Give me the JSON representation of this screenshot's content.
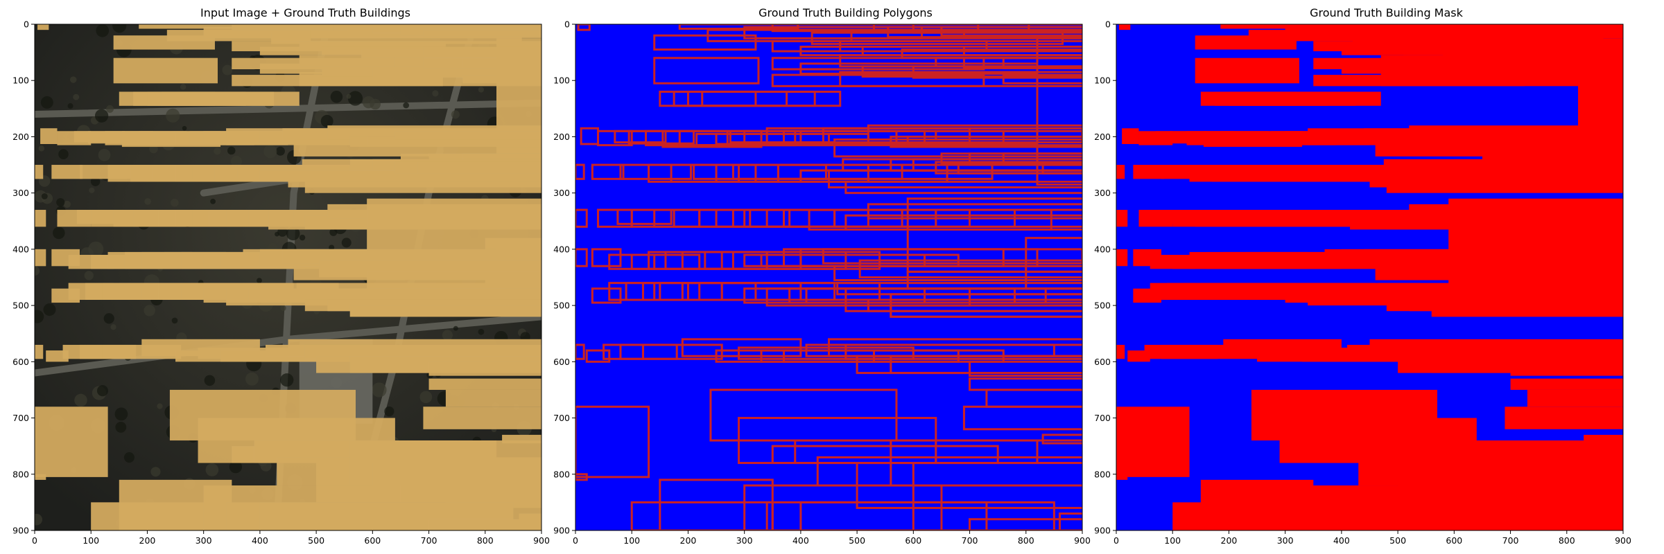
{
  "chart_data": [
    {
      "type": "image",
      "title": "Input Image + Ground Truth Buildings",
      "xlim": [
        0,
        900
      ],
      "ylim": [
        900,
        0
      ],
      "x_ticks": [
        0,
        100,
        200,
        300,
        400,
        500,
        600,
        700,
        800,
        900
      ],
      "y_ticks": [
        0,
        100,
        200,
        300,
        400,
        500,
        600,
        700,
        800,
        900
      ],
      "content": "satellite image with semi-transparent orange building overlay"
    },
    {
      "type": "image",
      "title": "Ground Truth Building Polygons",
      "xlim": [
        0,
        900
      ],
      "ylim": [
        900,
        0
      ],
      "x_ticks": [
        0,
        100,
        200,
        300,
        400,
        500,
        600,
        700,
        800,
        900
      ],
      "y_ticks": [
        0,
        100,
        200,
        300,
        400,
        500,
        600,
        700,
        800,
        900
      ],
      "background_color": "#0000ff",
      "outline_color": "#cc2222"
    },
    {
      "type": "image",
      "title": "Ground Truth Building Mask",
      "xlim": [
        0,
        900
      ],
      "ylim": [
        900,
        0
      ],
      "x_ticks": [
        0,
        100,
        200,
        300,
        400,
        500,
        600,
        700,
        800,
        900
      ],
      "y_ticks": [
        0,
        100,
        200,
        300,
        400,
        500,
        600,
        700,
        800,
        900
      ],
      "background_color": "#0000ff",
      "mask_color": "#ff0000"
    }
  ],
  "buildings": [
    [
      5,
      0,
      20,
      10
    ],
    [
      185,
      0,
      210,
      8
    ],
    [
      140,
      20,
      180,
      25
    ],
    [
      140,
      60,
      185,
      45
    ],
    [
      235,
      10,
      255,
      20
    ],
    [
      300,
      5,
      315,
      20
    ],
    [
      350,
      0,
      365,
      12
    ],
    [
      395,
      0,
      410,
      10
    ],
    [
      420,
      15,
      445,
      20
    ],
    [
      490,
      10,
      510,
      15
    ],
    [
      530,
      0,
      540,
      12
    ],
    [
      555,
      5,
      570,
      18
    ],
    [
      600,
      0,
      620,
      15
    ],
    [
      650,
      5,
      665,
      15
    ],
    [
      690,
      10,
      720,
      12
    ],
    [
      150,
      120,
      170,
      25
    ],
    [
      175,
      120,
      200,
      25
    ],
    [
      200,
      120,
      225,
      25
    ],
    [
      225,
      120,
      245,
      25
    ],
    [
      350,
      30,
      380,
      18
    ],
    [
      350,
      60,
      375,
      20
    ],
    [
      350,
      90,
      375,
      20
    ],
    [
      400,
      40,
      420,
      15
    ],
    [
      400,
      70,
      420,
      18
    ],
    [
      470,
      30,
      490,
      18
    ],
    [
      470,
      55,
      495,
      20
    ],
    [
      470,
      85,
      495,
      25
    ],
    [
      510,
      40,
      530,
      15
    ],
    [
      510,
      75,
      535,
      18
    ],
    [
      580,
      45,
      600,
      15
    ],
    [
      600,
      75,
      615,
      20
    ],
    [
      640,
      60,
      655,
      15
    ],
    [
      690,
      40,
      705,
      15
    ],
    [
      690,
      60,
      710,
      18
    ],
    [
      760,
      60,
      790,
      18
    ],
    [
      760,
      90,
      780,
      15
    ],
    [
      820,
      25,
      860,
      260
    ],
    [
      10,
      185,
      30,
      28
    ],
    [
      40,
      190,
      60,
      25
    ],
    [
      70,
      190,
      90,
      20
    ],
    [
      95,
      190,
      115,
      22
    ],
    [
      125,
      190,
      145,
      25
    ],
    [
      155,
      190,
      175,
      28
    ],
    [
      185,
      190,
      205,
      25
    ],
    [
      215,
      195,
      235,
      20
    ],
    [
      250,
      195,
      270,
      18
    ],
    [
      275,
      190,
      295,
      20
    ],
    [
      300,
      190,
      320,
      22
    ],
    [
      340,
      185,
      360,
      30
    ],
    [
      370,
      190,
      390,
      20
    ],
    [
      400,
      190,
      420,
      22
    ],
    [
      440,
      185,
      460,
      25
    ],
    [
      460,
      205,
      480,
      30
    ],
    [
      475,
      240,
      495,
      20
    ],
    [
      520,
      180,
      540,
      25
    ],
    [
      560,
      200,
      575,
      18
    ],
    [
      590,
      200,
      610,
      15
    ],
    [
      640,
      190,
      660,
      15
    ],
    [
      650,
      230,
      680,
      18
    ],
    [
      700,
      230,
      725,
      20
    ],
    [
      760,
      230,
      775,
      20
    ],
    [
      830,
      250,
      850,
      15
    ],
    [
      0,
      250,
      15,
      25
    ],
    [
      30,
      250,
      55,
      25
    ],
    [
      80,
      250,
      125,
      25
    ],
    [
      130,
      250,
      160,
      30
    ],
    [
      170,
      250,
      190,
      30
    ],
    [
      210,
      250,
      235,
      25
    ],
    [
      250,
      250,
      270,
      30
    ],
    [
      280,
      250,
      300,
      25
    ],
    [
      320,
      250,
      340,
      30
    ],
    [
      360,
      250,
      380,
      25
    ],
    [
      400,
      260,
      420,
      20
    ],
    [
      450,
      260,
      470,
      30
    ],
    [
      480,
      280,
      500,
      20
    ],
    [
      560,
      240,
      580,
      20
    ],
    [
      600,
      240,
      620,
      20
    ],
    [
      640,
      245,
      660,
      20
    ],
    [
      680,
      245,
      700,
      20
    ],
    [
      0,
      330,
      20,
      30
    ],
    [
      40,
      330,
      60,
      30
    ],
    [
      75,
      330,
      95,
      25
    ],
    [
      100,
      330,
      120,
      30
    ],
    [
      140,
      330,
      160,
      30
    ],
    [
      175,
      330,
      195,
      30
    ],
    [
      220,
      330,
      240,
      30
    ],
    [
      250,
      330,
      270,
      30
    ],
    [
      280,
      330,
      300,
      30
    ],
    [
      310,
      330,
      330,
      30
    ],
    [
      340,
      330,
      360,
      30
    ],
    [
      380,
      330,
      400,
      30
    ],
    [
      415,
      330,
      430,
      35
    ],
    [
      460,
      330,
      480,
      30
    ],
    [
      480,
      340,
      500,
      25
    ],
    [
      520,
      320,
      550,
      25
    ],
    [
      590,
      310,
      740,
      130
    ],
    [
      800,
      380,
      880,
      90
    ],
    [
      0,
      400,
      20,
      30
    ],
    [
      30,
      400,
      50,
      30
    ],
    [
      60,
      410,
      80,
      25
    ],
    [
      100,
      410,
      120,
      25
    ],
    [
      130,
      405,
      150,
      30
    ],
    [
      160,
      405,
      180,
      30
    ],
    [
      190,
      405,
      210,
      30
    ],
    [
      230,
      405,
      250,
      30
    ],
    [
      260,
      405,
      280,
      30
    ],
    [
      300,
      410,
      320,
      20
    ],
    [
      330,
      410,
      350,
      20
    ],
    [
      370,
      400,
      390,
      30
    ],
    [
      400,
      400,
      420,
      30
    ],
    [
      440,
      400,
      460,
      25
    ],
    [
      460,
      430,
      480,
      25
    ],
    [
      465,
      460,
      485,
      20
    ],
    [
      480,
      470,
      500,
      25
    ],
    [
      505,
      420,
      520,
      30
    ],
    [
      560,
      480,
      640,
      40
    ],
    [
      590,
      440,
      640,
      30
    ],
    [
      30,
      470,
      50,
      25
    ],
    [
      60,
      460,
      80,
      30
    ],
    [
      90,
      460,
      110,
      30
    ],
    [
      120,
      460,
      140,
      30
    ],
    [
      150,
      460,
      170,
      30
    ],
    [
      190,
      460,
      210,
      30
    ],
    [
      220,
      460,
      240,
      30
    ],
    [
      260,
      460,
      280,
      30
    ],
    [
      300,
      470,
      320,
      25
    ],
    [
      340,
      470,
      360,
      30
    ],
    [
      380,
      470,
      400,
      25
    ],
    [
      410,
      470,
      425,
      25
    ],
    [
      480,
      490,
      500,
      20
    ],
    [
      520,
      490,
      540,
      20
    ],
    [
      560,
      500,
      580,
      20
    ],
    [
      0,
      570,
      15,
      25
    ],
    [
      20,
      580,
      40,
      20
    ],
    [
      50,
      570,
      70,
      25
    ],
    [
      80,
      570,
      100,
      25
    ],
    [
      120,
      570,
      140,
      25
    ],
    [
      190,
      560,
      210,
      30
    ],
    [
      250,
      580,
      280,
      20
    ],
    [
      290,
      575,
      310,
      20
    ],
    [
      330,
      580,
      350,
      20
    ],
    [
      370,
      580,
      390,
      20
    ],
    [
      410,
      570,
      440,
      20
    ],
    [
      450,
      560,
      470,
      30
    ],
    [
      480,
      570,
      500,
      25
    ],
    [
      500,
      590,
      560,
      30
    ],
    [
      560,
      590,
      610,
      30
    ],
    [
      700,
      600,
      720,
      25
    ],
    [
      700,
      630,
      715,
      20
    ],
    [
      730,
      650,
      850,
      30
    ],
    [
      690,
      680,
      705,
      40
    ],
    [
      830,
      730,
      850,
      15
    ],
    [
      0,
      680,
      130,
      125
    ],
    [
      0,
      800,
      20,
      10
    ],
    [
      240,
      650,
      330,
      90
    ],
    [
      290,
      700,
      350,
      80
    ],
    [
      350,
      750,
      400,
      30
    ],
    [
      390,
      740,
      430,
      40
    ],
    [
      430,
      770,
      500,
      50
    ],
    [
      500,
      780,
      560,
      80
    ],
    [
      560,
      740,
      600,
      80
    ],
    [
      600,
      780,
      650,
      120
    ],
    [
      150,
      810,
      200,
      90
    ],
    [
      100,
      850,
      250,
      50
    ],
    [
      300,
      820,
      350,
      80
    ],
    [
      340,
      850,
      390,
      50
    ],
    [
      400,
      850,
      450,
      50
    ],
    [
      700,
      880,
      900,
      20
    ],
    [
      860,
      870,
      900,
      30
    ]
  ]
}
